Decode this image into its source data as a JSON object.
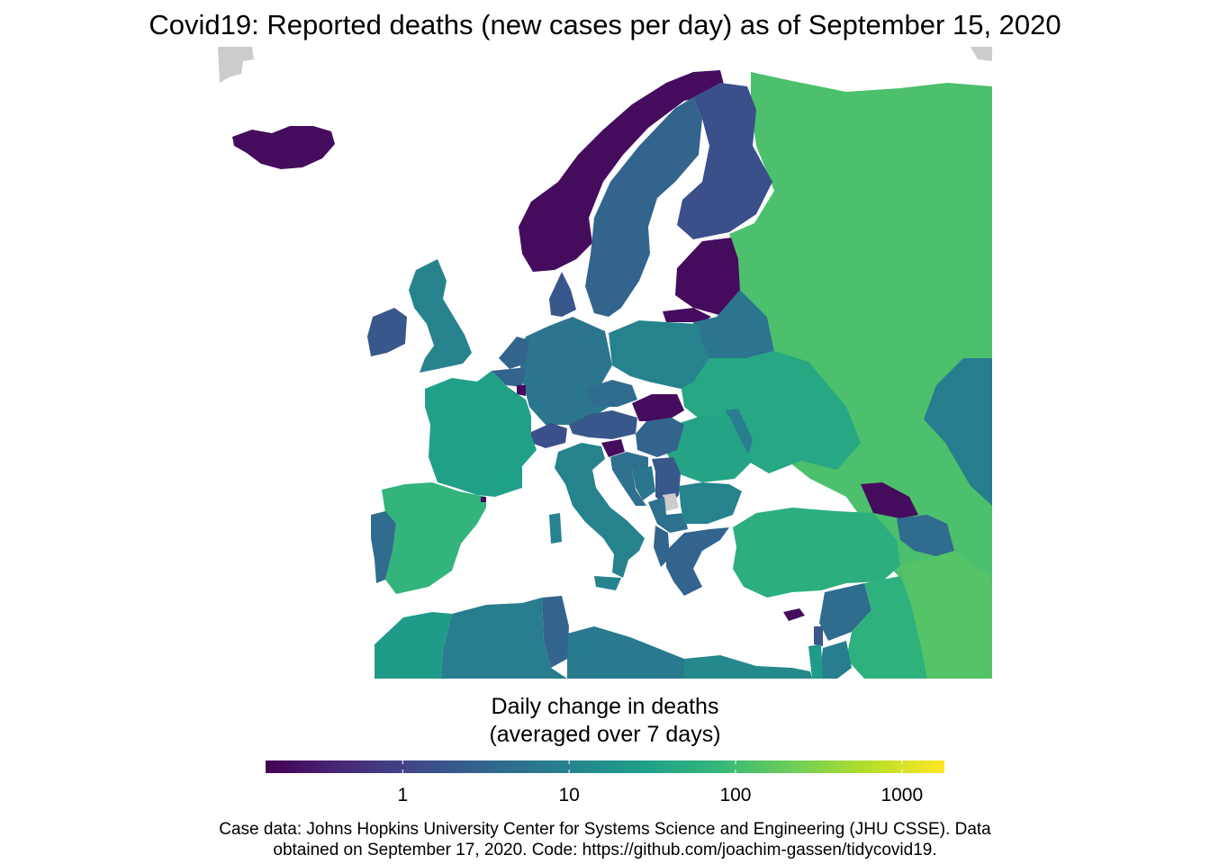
{
  "title": "Covid19: Reported deaths (new cases per day) as of September 15, 2020",
  "legend": {
    "title_line1": "Daily change in deaths",
    "title_line2": "(averaged over 7 days)",
    "scale": "log",
    "domain": [
      0.15,
      1800
    ],
    "ticks": [
      {
        "value": 1,
        "label": "1"
      },
      {
        "value": 10,
        "label": "10"
      },
      {
        "value": 100,
        "label": "100"
      },
      {
        "value": 1000,
        "label": "1000"
      }
    ],
    "gradient": [
      "#440154",
      "#482878",
      "#3e4989",
      "#31688e",
      "#26828e",
      "#1f9e89",
      "#35b779",
      "#6ece58",
      "#b5de2b",
      "#fde725"
    ]
  },
  "colors": {
    "no_data": "#cccccc",
    "water": "#ffffff"
  },
  "regions": [
    {
      "name": "Iceland",
      "value": 0.2
    },
    {
      "name": "Norway",
      "value": 0.2
    },
    {
      "name": "Sweden",
      "value": 3
    },
    {
      "name": "Finland",
      "value": 1.5
    },
    {
      "name": "Russia",
      "value": 120
    },
    {
      "name": "Estonia / Latvia",
      "value": 0.2
    },
    {
      "name": "Lithuania",
      "value": 0.2
    },
    {
      "name": "Belarus",
      "value": 6
    },
    {
      "name": "Ukraine",
      "value": 40
    },
    {
      "name": "Poland",
      "value": 10
    },
    {
      "name": "Germany",
      "value": 6
    },
    {
      "name": "Denmark",
      "value": 2
    },
    {
      "name": "Netherlands",
      "value": 3
    },
    {
      "name": "Belgium",
      "value": 3
    },
    {
      "name": "Luxembourg",
      "value": 0.2
    },
    {
      "name": "United Kingdom",
      "value": 10
    },
    {
      "name": "Ireland",
      "value": 2
    },
    {
      "name": "France",
      "value": 30
    },
    {
      "name": "Switzerland",
      "value": 1.5
    },
    {
      "name": "Austria",
      "value": 2
    },
    {
      "name": "Czechia",
      "value": 4
    },
    {
      "name": "Slovakia",
      "value": 0.2
    },
    {
      "name": "Hungary",
      "value": 3
    },
    {
      "name": "Slovenia",
      "value": 0.2
    },
    {
      "name": "Croatia",
      "value": 5
    },
    {
      "name": "Bosnia and Herzegovina",
      "value": 6
    },
    {
      "name": "Serbia",
      "value": 2
    },
    {
      "name": "Kosovo",
      "value": null
    },
    {
      "name": "Montenegro / North Macedonia",
      "value": 5
    },
    {
      "name": "Albania",
      "value": 3
    },
    {
      "name": "Romania",
      "value": 35
    },
    {
      "name": "Moldova",
      "value": 8
    },
    {
      "name": "Bulgaria",
      "value": 10
    },
    {
      "name": "Greece",
      "value": 3
    },
    {
      "name": "Italy",
      "value": 10
    },
    {
      "name": "Spain",
      "value": 70
    },
    {
      "name": "Portugal",
      "value": 4
    },
    {
      "name": "Andorra",
      "value": 0.2
    },
    {
      "name": "Turkey",
      "value": 55
    },
    {
      "name": "Georgia",
      "value": 0.2
    },
    {
      "name": "Armenia / Azerbaijan",
      "value": 4
    },
    {
      "name": "Kazakhstan",
      "value": 8
    },
    {
      "name": "Cyprus",
      "value": 0.2
    },
    {
      "name": "Syria",
      "value": 4
    },
    {
      "name": "Lebanon",
      "value": 2
    },
    {
      "name": "Iraq",
      "value": 60
    },
    {
      "name": "Iran",
      "value": 140
    },
    {
      "name": "Jordan",
      "value": 8
    },
    {
      "name": "Israel",
      "value": 25
    },
    {
      "name": "Morocco",
      "value": 25
    },
    {
      "name": "Algeria",
      "value": 8
    },
    {
      "name": "Tunisia",
      "value": 3
    },
    {
      "name": "Libya",
      "value": 7
    },
    {
      "name": "Egypt",
      "value": 12
    },
    {
      "name": "Greenland / Svalbard",
      "value": null
    }
  ],
  "caption_line1": "Case data: Johns Hopkins University Center for Systems Science and Engineering (JHU CSSE). Data",
  "caption_line2": "obtained on September 17, 2020. Code: https://github.com/joachim-gassen/tidycovid19."
}
